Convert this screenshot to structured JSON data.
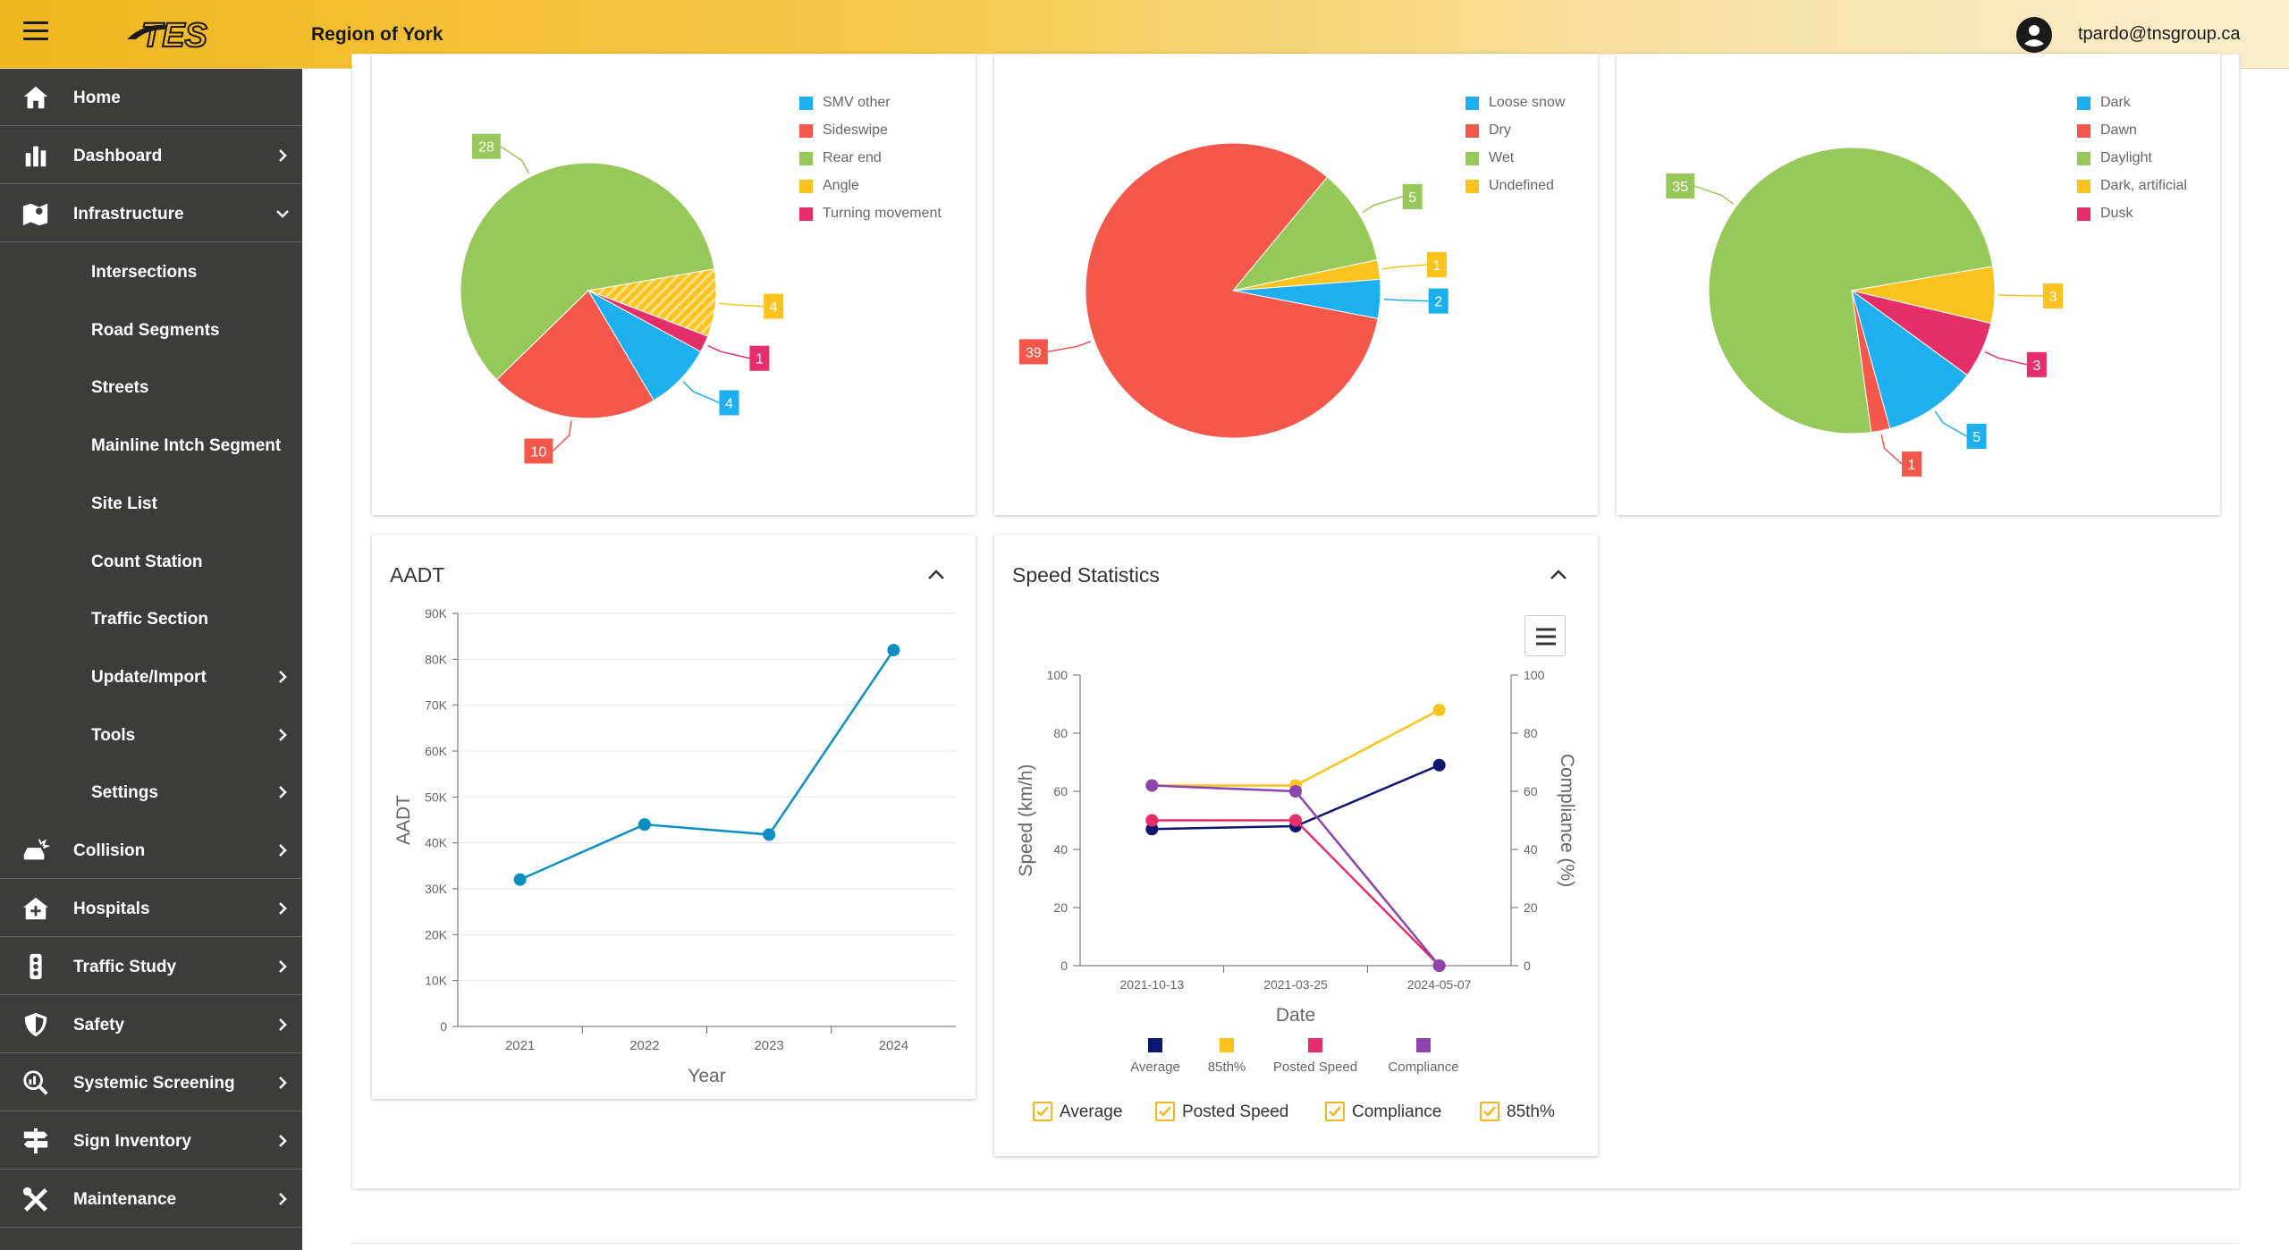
{
  "header": {
    "logo_text": "TES",
    "region": "Region of York",
    "user_email": "tpardo@tnsgroup.ca"
  },
  "sidebar": {
    "items": [
      {
        "label": "Home",
        "icon": "home-icon",
        "chevron": "none",
        "sub": false
      },
      {
        "label": "Dashboard",
        "icon": "bar-chart-icon",
        "chevron": "right",
        "sub": false
      },
      {
        "label": "Infrastructure",
        "icon": "map-icon",
        "chevron": "down",
        "sub": false
      },
      {
        "label": "Intersections",
        "chevron": "none",
        "sub": true
      },
      {
        "label": "Road Segments",
        "chevron": "none",
        "sub": true
      },
      {
        "label": "Streets",
        "chevron": "none",
        "sub": true
      },
      {
        "label": "Mainline Intch Segment",
        "chevron": "none",
        "sub": true
      },
      {
        "label": "Site List",
        "chevron": "none",
        "sub": true
      },
      {
        "label": "Count Station",
        "chevron": "none",
        "sub": true
      },
      {
        "label": "Traffic Section",
        "chevron": "none",
        "sub": true
      },
      {
        "label": "Update/Import",
        "chevron": "right",
        "sub": true
      },
      {
        "label": "Tools",
        "chevron": "right",
        "sub": true
      },
      {
        "label": "Settings",
        "chevron": "right",
        "sub": true
      },
      {
        "label": "Collision",
        "icon": "car-crash-icon",
        "chevron": "right",
        "sub": false
      },
      {
        "label": "Hospitals",
        "icon": "hospital-icon",
        "chevron": "right",
        "sub": false
      },
      {
        "label": "Traffic Study",
        "icon": "traffic-light-icon",
        "chevron": "right",
        "sub": false
      },
      {
        "label": "Safety",
        "icon": "shield-icon",
        "chevron": "right",
        "sub": false
      },
      {
        "label": "Systemic Screening",
        "icon": "search-chart-icon",
        "chevron": "right",
        "sub": false
      },
      {
        "label": "Sign Inventory",
        "icon": "signpost-icon",
        "chevron": "right",
        "sub": false
      },
      {
        "label": "Maintenance",
        "icon": "tools-icon",
        "chevron": "right",
        "sub": false
      }
    ]
  },
  "colors": {
    "blue": "#1daff0",
    "red": "#f5574a",
    "green": "#97c85a",
    "yellow": "#fcc31e",
    "pink": "#e62f6a",
    "navy": "#0d1670",
    "purple": "#8e44ad",
    "line": "#0a8ec4"
  },
  "aadt_panel": {
    "title": "AADT"
  },
  "speed_panel": {
    "title": "Speed Statistics"
  },
  "chart_data": [
    {
      "type": "pie",
      "name": "collision-type",
      "legend": [
        "SMV other",
        "Sideswipe",
        "Rear end",
        "Angle",
        "Turning movement"
      ],
      "slices": [
        {
          "label": "Rear end",
          "value": 28,
          "color": "#97c85a"
        },
        {
          "label": "Angle",
          "value": 4,
          "color": "#fcc31e",
          "hatched": true
        },
        {
          "label": "Turning movement",
          "value": 1,
          "color": "#e62f6a"
        },
        {
          "label": "SMV other",
          "value": 4,
          "color": "#1daff0"
        },
        {
          "label": "Sideswipe",
          "value": 10,
          "color": "#f5574a"
        }
      ]
    },
    {
      "type": "pie",
      "name": "road-surface",
      "legend": [
        "Loose snow",
        "Dry",
        "Wet",
        "Undefined"
      ],
      "slices": [
        {
          "label": "Wet",
          "value": 5,
          "color": "#97c85a"
        },
        {
          "label": "Undefined",
          "value": 1,
          "color": "#fcc31e"
        },
        {
          "label": "Loose snow",
          "value": 2,
          "color": "#1daff0"
        },
        {
          "label": "Dry",
          "value": 39,
          "color": "#f5574a"
        }
      ]
    },
    {
      "type": "pie",
      "name": "light-condition",
      "legend": [
        "Dark",
        "Dawn",
        "Daylight",
        "Dark, artificial",
        "Dusk"
      ],
      "slices": [
        {
          "label": "Daylight",
          "value": 35,
          "color": "#97c85a"
        },
        {
          "label": "Dark, artificial",
          "value": 3,
          "color": "#fcc31e"
        },
        {
          "label": "Dusk",
          "value": 3,
          "color": "#e62f6a"
        },
        {
          "label": "Dark",
          "value": 5,
          "color": "#1daff0"
        },
        {
          "label": "Dawn",
          "value": 1,
          "color": "#f5574a"
        }
      ]
    },
    {
      "type": "line",
      "name": "aadt",
      "x": [
        "2021",
        "2022",
        "2023",
        "2024"
      ],
      "values": [
        32000,
        44000,
        41800,
        82000
      ],
      "xlabel": "Year",
      "ylabel": "AADT",
      "ylim": [
        0,
        90000
      ],
      "yticks": [
        "0",
        "10K",
        "20K",
        "30K",
        "40K",
        "50K",
        "60K",
        "70K",
        "80K",
        "90K"
      ],
      "grid": true
    },
    {
      "type": "line",
      "name": "speed-statistics",
      "x": [
        "2021-10-13",
        "2021-03-25",
        "2024-05-07"
      ],
      "xlabel": "Date",
      "ylabel": "Speed (km/h)",
      "y2label": "Compliance (%)",
      "ylim": [
        0,
        100
      ],
      "y2lim": [
        0,
        100
      ],
      "yticks": [
        "0",
        "20",
        "40",
        "60",
        "80",
        "100"
      ],
      "grid": false,
      "legend_placement": "bottom",
      "series": [
        {
          "name": "Average",
          "values": [
            47,
            48,
            69
          ],
          "color": "#0d1670"
        },
        {
          "name": "85th%",
          "values": [
            62,
            62,
            88
          ],
          "color": "#fcc31e"
        },
        {
          "name": "Posted Speed",
          "values": [
            50,
            50,
            0
          ],
          "color": "#e62f6a"
        },
        {
          "name": "Compliance",
          "values": [
            62,
            60,
            0
          ],
          "color": "#8e44ad"
        }
      ],
      "toggles": [
        "Average",
        "Posted Speed",
        "Compliance",
        "85th%"
      ]
    }
  ]
}
